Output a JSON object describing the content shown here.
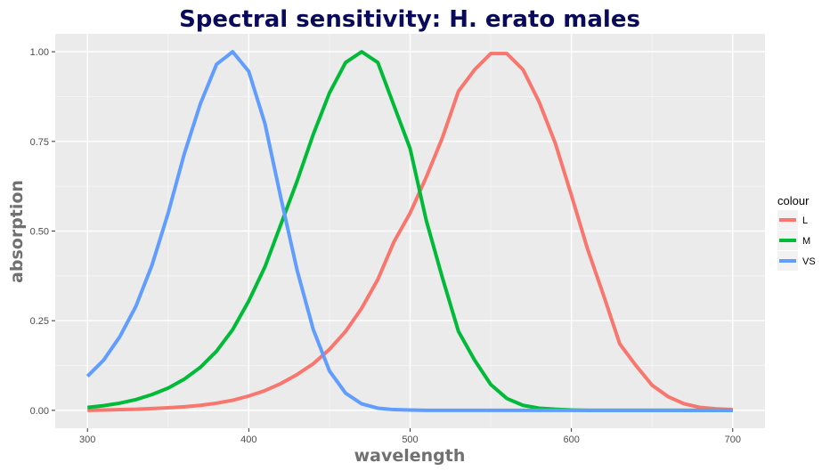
{
  "chart_data": {
    "type": "line",
    "title": "Spectral sensitivity: H. erato males",
    "xlabel": "wavelength",
    "ylabel": "absorption",
    "xlim": [
      280,
      720
    ],
    "ylim": [
      -0.05,
      1.05
    ],
    "x_ticks": [
      300,
      400,
      500,
      600,
      700
    ],
    "x_tick_labels": [
      "300",
      "400",
      "500",
      "600",
      "700"
    ],
    "y_ticks": [
      0,
      0.25,
      0.5,
      0.75,
      1.0
    ],
    "y_tick_labels": [
      "0.00",
      "0.25",
      "0.50",
      "0.75",
      "1.00"
    ],
    "grid": true,
    "legend": {
      "title": "colour",
      "position": "right"
    },
    "x": [
      300,
      310,
      320,
      330,
      340,
      350,
      360,
      370,
      380,
      390,
      400,
      410,
      420,
      430,
      440,
      450,
      460,
      470,
      480,
      490,
      500,
      510,
      520,
      530,
      540,
      550,
      560,
      570,
      580,
      590,
      600,
      610,
      620,
      630,
      640,
      650,
      660,
      670,
      680,
      690,
      700
    ],
    "series": [
      {
        "name": "L",
        "color": "#F8766D",
        "values": [
          0.0,
          0.001,
          0.002,
          0.003,
          0.005,
          0.007,
          0.01,
          0.014,
          0.02,
          0.028,
          0.04,
          0.055,
          0.075,
          0.1,
          0.13,
          0.17,
          0.22,
          0.285,
          0.365,
          0.47,
          0.55,
          0.65,
          0.76,
          0.89,
          0.95,
          0.995,
          0.995,
          0.95,
          0.86,
          0.745,
          0.6,
          0.45,
          0.32,
          0.185,
          0.125,
          0.07,
          0.038,
          0.018,
          0.008,
          0.004,
          0.002
        ]
      },
      {
        "name": "M",
        "color": "#00BA38",
        "values": [
          0.008,
          0.013,
          0.02,
          0.03,
          0.044,
          0.062,
          0.087,
          0.12,
          0.165,
          0.225,
          0.305,
          0.4,
          0.52,
          0.64,
          0.77,
          0.885,
          0.97,
          1.0,
          0.97,
          0.85,
          0.73,
          0.53,
          0.37,
          0.22,
          0.14,
          0.072,
          0.033,
          0.014,
          0.006,
          0.003,
          0.001,
          0.0,
          0.0,
          0.0,
          0.0,
          0.0,
          0.0,
          0.0,
          0.0,
          0.0,
          0.0
        ]
      },
      {
        "name": "VS",
        "color": "#619CFF",
        "values": [
          0.095,
          0.14,
          0.205,
          0.29,
          0.405,
          0.55,
          0.715,
          0.855,
          0.965,
          1.0,
          0.945,
          0.8,
          0.59,
          0.39,
          0.225,
          0.11,
          0.048,
          0.018,
          0.006,
          0.002,
          0.001,
          0.0,
          0.0,
          0.0,
          0.0,
          0.0,
          0.0,
          0.0,
          0.0,
          0.0,
          0.0,
          0.0,
          0.0,
          0.0,
          0.0,
          0.0,
          0.0,
          0.0,
          0.0,
          0.0,
          0.0
        ]
      }
    ]
  }
}
